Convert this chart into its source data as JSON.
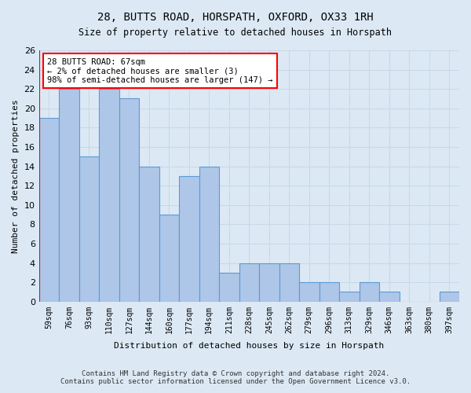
{
  "title": "28, BUTTS ROAD, HORSPATH, OXFORD, OX33 1RH",
  "subtitle": "Size of property relative to detached houses in Horspath",
  "xlabel": "Distribution of detached houses by size in Horspath",
  "ylabel": "Number of detached properties",
  "bar_labels": [
    "59sqm",
    "76sqm",
    "93sqm",
    "110sqm",
    "127sqm",
    "144sqm",
    "160sqm",
    "177sqm",
    "194sqm",
    "211sqm",
    "228sqm",
    "245sqm",
    "262sqm",
    "279sqm",
    "296sqm",
    "313sqm",
    "329sqm",
    "346sqm",
    "363sqm",
    "380sqm",
    "397sqm"
  ],
  "bar_values": [
    19,
    22,
    15,
    22,
    21,
    14,
    9,
    13,
    14,
    3,
    4,
    4,
    4,
    2,
    2,
    1,
    2,
    1,
    0,
    0,
    1
  ],
  "bar_color": "#aec6e8",
  "bar_edge_color": "#5b9bd5",
  "highlight_bar_index": 0,
  "highlight_color": "#ff0000",
  "ylim": [
    0,
    26
  ],
  "yticks": [
    0,
    2,
    4,
    6,
    8,
    10,
    12,
    14,
    16,
    18,
    20,
    22,
    24,
    26
  ],
  "annotation_text": "28 BUTTS ROAD: 67sqm\n← 2% of detached houses are smaller (3)\n98% of semi-detached houses are larger (147) →",
  "annotation_box_color": "#ffffff",
  "annotation_box_edge_color": "#ff0000",
  "grid_color": "#c8d8e8",
  "bg_color": "#dce9f5",
  "footer_line1": "Contains HM Land Registry data © Crown copyright and database right 2024.",
  "footer_line2": "Contains public sector information licensed under the Open Government Licence v3.0."
}
